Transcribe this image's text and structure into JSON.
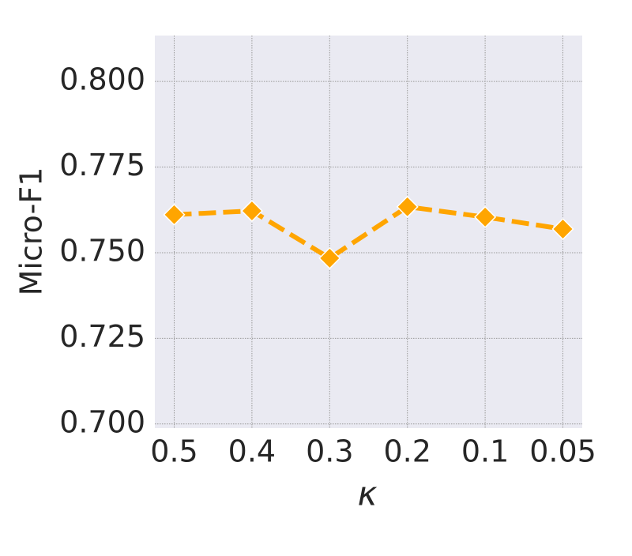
{
  "chart_data": {
    "type": "line",
    "x_label": "κ",
    "y_label": "Micro-F1",
    "categories": [
      "0.5",
      "0.4",
      "0.3",
      "0.2",
      "0.1",
      "0.05"
    ],
    "series": [
      {
        "name": "Micro-F1",
        "color": "#ffa500",
        "values": [
          0.7611,
          0.7622,
          0.7484,
          0.7634,
          0.7604,
          0.7569
        ]
      }
    ],
    "ylim": [
      0.6988,
      0.8134
    ],
    "yticks": [
      {
        "value": 0.7,
        "label": "0.700"
      },
      {
        "value": 0.725,
        "label": "0.725"
      },
      {
        "value": 0.75,
        "label": "0.750"
      },
      {
        "value": 0.775,
        "label": "0.775"
      },
      {
        "value": 0.8,
        "label": "0.800"
      }
    ],
    "grid": true,
    "legend": false
  }
}
